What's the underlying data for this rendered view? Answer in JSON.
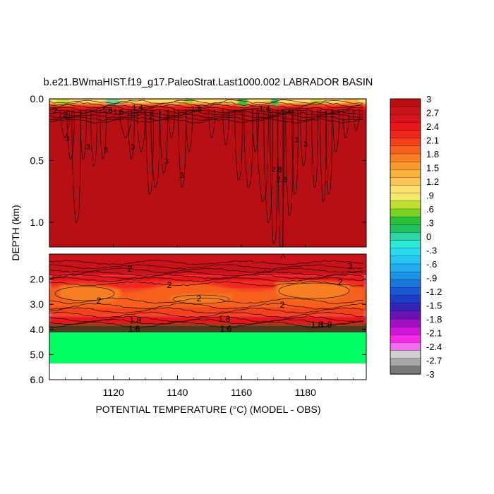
{
  "chart_data": {
    "type": "heatmap",
    "title": "b.e21.BWmaHIST.f19_g17.PaleoStrat.Last1000.002 LABRADOR BASIN",
    "xlabel": "POTENTIAL TEMPERATURE (°C) (MODEL - OBS)",
    "ylabel": "DEPTH (km)",
    "x_ticks": [
      "1120",
      "1140",
      "1160",
      "1180"
    ],
    "x_range": [
      1100,
      1199
    ],
    "panels": [
      {
        "name": "upper",
        "y_range": [
          0.0,
          1.2
        ],
        "y_ticks": [
          "0.0",
          "0.5",
          "1.0"
        ],
        "contour_labels": [
          "2",
          "2",
          "1.8",
          "1.4",
          "1.6",
          "2",
          "1.8",
          "3",
          "3",
          "3",
          "3",
          "3",
          "3",
          "2.8",
          "2.8",
          "3",
          "3",
          "1.4",
          "1.4"
        ]
      },
      {
        "name": "lower",
        "y_range": [
          1.2,
          6.0
        ],
        "y_ticks": [
          "2.0",
          "3.0",
          "4.0",
          "5.0",
          "6.0"
        ],
        "contour_labels": [
          "3",
          "2",
          "2",
          "2",
          "2",
          "2",
          "2",
          "1.8",
          "1.8",
          "1.8",
          "1.8",
          "1.6",
          "1.6"
        ]
      }
    ],
    "colorbar": {
      "labels": [
        "3",
        "2.7",
        "2.4",
        "2.1",
        "1.8",
        "1.5",
        "1.2",
        ".9",
        ".6",
        ".3",
        "0",
        "-.3",
        "-.6",
        "-.9",
        "-1.2",
        "-1.5",
        "-1.8",
        "-2.1",
        "-2.4",
        "-2.7",
        "-3"
      ],
      "colors": [
        "#b80f14",
        "#c8131a",
        "#d8141c",
        "#e8161c",
        "#f2251a",
        "#f5411b",
        "#f6601c",
        "#f77e21",
        "#f89a2c",
        "#fbb13d",
        "#fcc555",
        "#fde070",
        "#f2ea6a",
        "#c2df2e",
        "#7cd422",
        "#2ebf3a",
        "#22c061",
        "#2fd6a3",
        "#2ce9dc",
        "#29d9ee",
        "#26c6f2",
        "#20aef0",
        "#1b93e7",
        "#1a75dc",
        "#1a57d2",
        "#1e3bc8",
        "#3423b4",
        "#6913b4",
        "#a010c4",
        "#d016d8",
        "#f52ae6",
        "#f46cee",
        "#d0d0d0",
        "#a7a7a7",
        "#787878"
      ]
    }
  }
}
